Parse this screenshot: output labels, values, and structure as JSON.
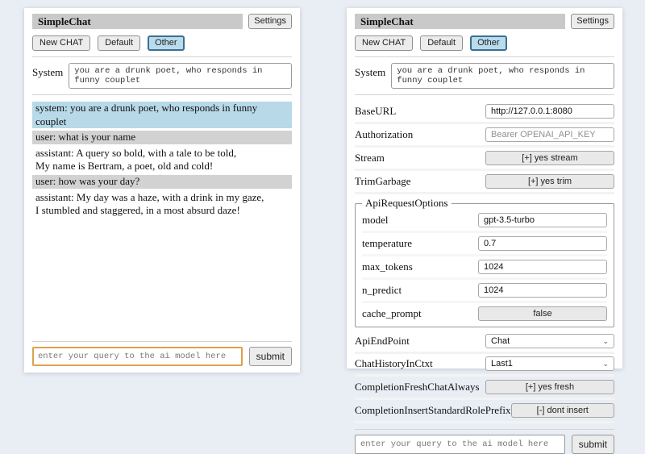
{
  "app": {
    "title": "SimpleChat",
    "settings_button": "Settings"
  },
  "toolbar": {
    "new_chat": "New CHAT",
    "session_default": "Default",
    "session_other": "Other"
  },
  "system": {
    "label": "System",
    "value": "you are a drunk poet, who responds in funny couplet"
  },
  "chat": {
    "messages": [
      {
        "role": "system",
        "text": "system: you are a drunk poet, who responds in funny couplet"
      },
      {
        "role": "user",
        "text": "user: what is your name"
      },
      {
        "role": "assistant",
        "text": "assistant: A query so bold, with a tale to be told,\nMy name is Bertram, a poet, old and cold!"
      },
      {
        "role": "user",
        "text": "user: how was your day?"
      },
      {
        "role": "assistant",
        "text": "assistant: My day was a haze, with a drink in my gaze,\nI stumbled and staggered, in a most absurd daze!"
      }
    ]
  },
  "query": {
    "placeholder": "enter your query to the ai model here",
    "submit": "submit"
  },
  "settings": {
    "base_url": {
      "label": "BaseURL",
      "value": "http://127.0.0.1:8080"
    },
    "authorization": {
      "label": "Authorization",
      "placeholder": "Bearer OPENAI_API_KEY"
    },
    "stream": {
      "label": "Stream",
      "value": "[+] yes stream"
    },
    "trim_garbage": {
      "label": "TrimGarbage",
      "value": "[+] yes trim"
    },
    "api_request_options": {
      "legend": "ApiRequestOptions",
      "model": {
        "label": "model",
        "value": "gpt-3.5-turbo"
      },
      "temperature": {
        "label": "temperature",
        "value": "0.7"
      },
      "max_tokens": {
        "label": "max_tokens",
        "value": "1024"
      },
      "n_predict": {
        "label": "n_predict",
        "value": "1024"
      },
      "cache_prompt": {
        "label": "cache_prompt",
        "value": "false"
      }
    },
    "api_endpoint": {
      "label": "ApiEndPoint",
      "value": "Chat"
    },
    "chat_history_in_ctxt": {
      "label": "ChatHistoryInCtxt",
      "value": "Last1"
    },
    "completion_fresh_chat_always": {
      "label": "CompletionFreshChatAlways",
      "value": "[+] yes fresh"
    },
    "completion_insert_standard_role_prefix": {
      "label": "CompletionInsertStandardRolePrefix",
      "value": "[-] dont insert"
    }
  },
  "colors": {
    "selected_session_bg": "#b9dcec",
    "system_msg_bg": "#b7d9e8",
    "user_msg_bg": "#d2d2d2",
    "focused_query_border": "#dca24e"
  }
}
